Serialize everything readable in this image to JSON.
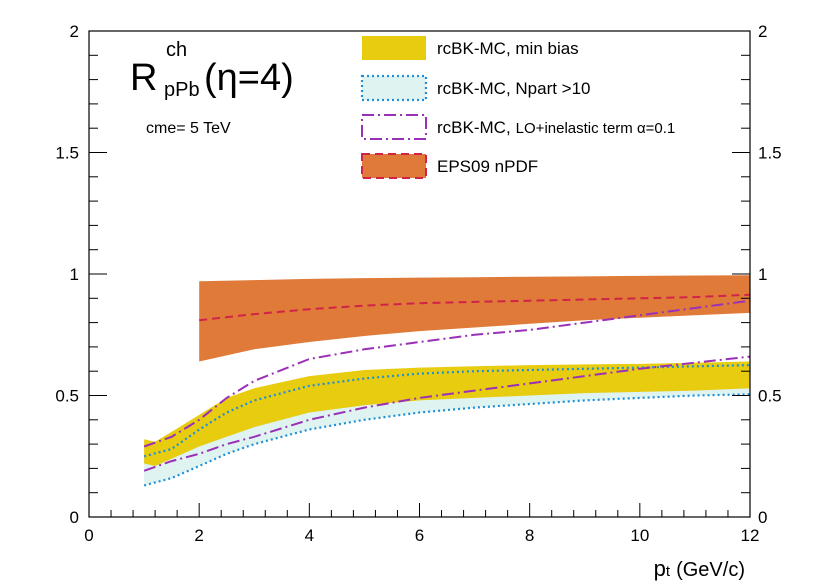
{
  "chart_data": {
    "type": "area",
    "title_main": "R",
    "title_sup": "ch",
    "title_sub": "pPb",
    "title_suffix": "(η=4)",
    "annotation": "cme= 5 TeV",
    "xlabel_main": "p",
    "xlabel_sub": "t",
    "xlabel_units": "(GeV/c)",
    "xlim": [
      0,
      12
    ],
    "ylim": [
      0,
      2
    ],
    "xticks": [
      "0",
      "2",
      "4",
      "6",
      "8",
      "10",
      "12"
    ],
    "yticks_left": [
      "0",
      "0.5",
      "1",
      "1.5",
      "2"
    ],
    "yticks_right": [
      "0",
      "0.5",
      "1",
      "1.5",
      "2"
    ],
    "colors": {
      "minbias_fill": "#e8cc10",
      "npart": "#1f8fd6",
      "npart_fill": "#dff3f1",
      "lo": "#9b30b8",
      "eps_fill": "#e07a38",
      "eps_line": "#d0234a"
    },
    "legend": [
      {
        "label": "rcBK-MC, min bias"
      },
      {
        "label": "rcBK-MC, Npart >10"
      },
      {
        "label_main": "rcBK-MC,",
        "label_rest": "LO+inelastic term α=0.1"
      },
      {
        "label": "EPS09 nPDF"
      }
    ],
    "series": [
      {
        "name": "rcBK-MC, min bias",
        "style": "band",
        "x": [
          1,
          1.2,
          1.5,
          2,
          2.5,
          3,
          4,
          5,
          6,
          7,
          8,
          9,
          10,
          11,
          12
        ],
        "lower": [
          0.22,
          0.21,
          0.24,
          0.29,
          0.33,
          0.37,
          0.43,
          0.46,
          0.48,
          0.49,
          0.5,
          0.51,
          0.515,
          0.52,
          0.53
        ],
        "upper": [
          0.32,
          0.31,
          0.35,
          0.42,
          0.49,
          0.53,
          0.58,
          0.605,
          0.615,
          0.62,
          0.625,
          0.628,
          0.63,
          0.635,
          0.64
        ]
      },
      {
        "name": "rcBK-MC, Npart >10",
        "style": "band-dotted",
        "x": [
          1,
          1.5,
          2,
          2.5,
          3,
          4,
          5,
          6,
          7,
          8,
          9,
          10,
          11,
          12
        ],
        "lower": [
          0.13,
          0.16,
          0.21,
          0.26,
          0.3,
          0.36,
          0.4,
          0.43,
          0.45,
          0.465,
          0.48,
          0.49,
          0.5,
          0.505
        ],
        "upper": [
          0.25,
          0.28,
          0.36,
          0.43,
          0.48,
          0.54,
          0.57,
          0.59,
          0.6,
          0.605,
          0.61,
          0.615,
          0.62,
          0.625
        ]
      },
      {
        "name": "rcBK-MC, LO+inelastic term α=0.1",
        "style": "dashdot",
        "x": [
          1,
          1.5,
          2,
          2.5,
          3,
          4,
          5,
          6,
          7,
          8,
          9,
          10,
          11,
          12
        ],
        "lower": [
          0.19,
          0.23,
          0.26,
          0.3,
          0.33,
          0.4,
          0.45,
          0.49,
          0.52,
          0.55,
          0.58,
          0.61,
          0.635,
          0.66
        ],
        "upper": [
          0.29,
          0.33,
          0.4,
          0.49,
          0.56,
          0.65,
          0.69,
          0.72,
          0.75,
          0.77,
          0.8,
          0.83,
          0.86,
          0.89
        ]
      },
      {
        "name": "EPS09 nPDF",
        "style": "band-dashed",
        "x": [
          2,
          3,
          4,
          5,
          6,
          7,
          8,
          9,
          10,
          11,
          12
        ],
        "lower": [
          0.64,
          0.69,
          0.72,
          0.745,
          0.765,
          0.78,
          0.795,
          0.81,
          0.82,
          0.83,
          0.84
        ],
        "upper": [
          0.97,
          0.975,
          0.98,
          0.983,
          0.985,
          0.987,
          0.989,
          0.99,
          0.992,
          0.994,
          0.995
        ],
        "central": [
          0.81,
          0.835,
          0.855,
          0.87,
          0.88,
          0.885,
          0.89,
          0.895,
          0.9,
          0.905,
          0.915
        ]
      }
    ]
  }
}
